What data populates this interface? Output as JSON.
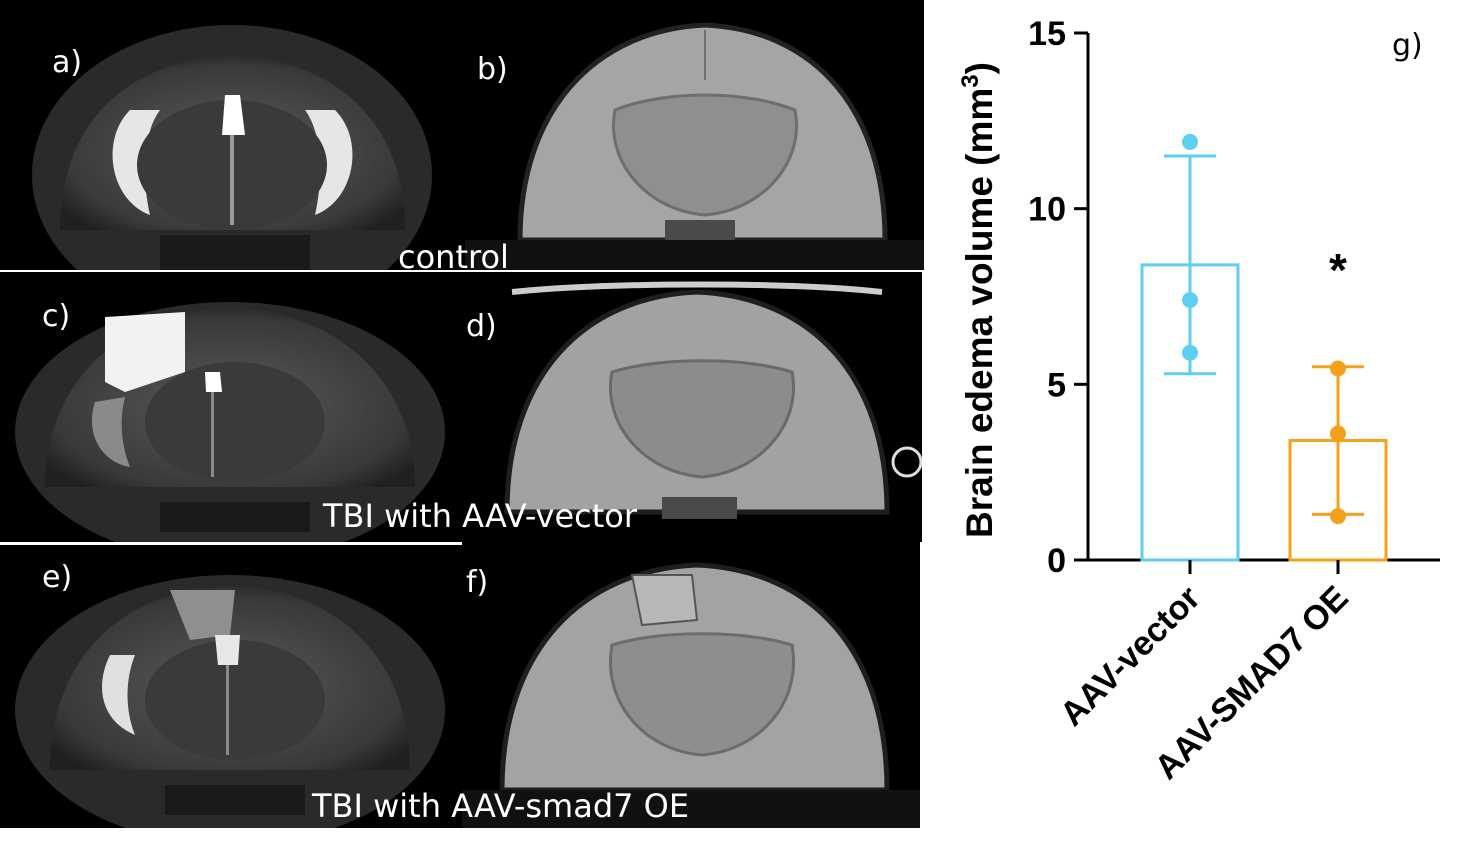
{
  "figure": {
    "panels": {
      "a": "a)",
      "b": "b)",
      "c": "c)",
      "d": "d)",
      "e": "e)",
      "f": "f)"
    },
    "captions": {
      "row1": "control",
      "row2": "TBI with AAV-vector",
      "row3": "TBI with AAV-smad7 OE"
    }
  },
  "chart_data": {
    "type": "bar",
    "panel_label": "g)",
    "ylabel": "Brain edema volume (mm3)",
    "ylabel_main": "Brain edema volume (mm",
    "ylabel_sup": "3",
    "ylabel_close": ")",
    "ylim": [
      0,
      15
    ],
    "yticks": [
      0,
      5,
      10,
      15
    ],
    "ytick_labels": [
      "0",
      "5",
      "10",
      "15"
    ],
    "categories": [
      "AAV-vector",
      "AAV-SMAD7 OE"
    ],
    "colors": [
      "#5ecff2",
      "#f5a01a"
    ],
    "means": [
      8.4,
      3.4
    ],
    "error_high": [
      11.5,
      5.5
    ],
    "error_low": [
      5.3,
      1.3
    ],
    "points": [
      [
        11.9,
        7.4,
        5.9
      ],
      [
        5.45,
        3.6,
        1.25
      ]
    ],
    "annotations": [
      {
        "category": "AAV-SMAD7 OE",
        "text": "*"
      }
    ],
    "grid": false,
    "legend": "none"
  }
}
